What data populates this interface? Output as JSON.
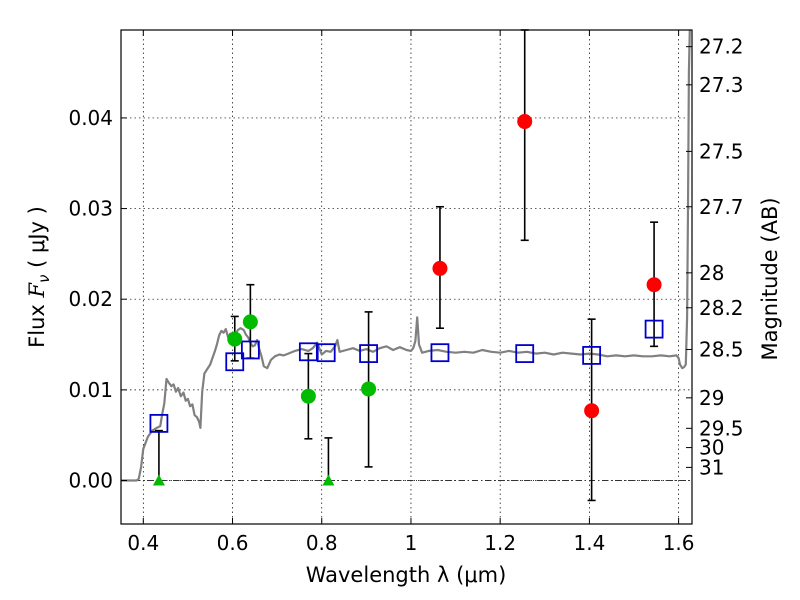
{
  "chart_data": {
    "type": "scatter",
    "xlabel": "Wavelength  λ (μm)",
    "ylabel": "Flux  F_ν  ( μJy )",
    "ylabel_parts": {
      "prefix": "Flux ",
      "symbol": "F",
      "sub": "ν",
      "unit": " ( μJy )"
    },
    "ylabel_right": "Magnitude (AB)",
    "xlim": [
      0.35,
      1.63
    ],
    "ylim": [
      -0.0048,
      0.0497
    ],
    "grid": true,
    "x_ticks": [
      {
        "v": 0.4,
        "label": "0.4"
      },
      {
        "v": 0.6,
        "label": "0.6"
      },
      {
        "v": 0.8,
        "label": "0.8"
      },
      {
        "v": 1.0,
        "label": "1"
      },
      {
        "v": 1.2,
        "label": "1.2"
      },
      {
        "v": 1.4,
        "label": "1.4"
      },
      {
        "v": 1.6,
        "label": "1.6"
      }
    ],
    "y_ticks": [
      {
        "v": 0.0,
        "label": "0.00"
      },
      {
        "v": 0.01,
        "label": "0.01"
      },
      {
        "v": 0.02,
        "label": "0.02"
      },
      {
        "v": 0.03,
        "label": "0.03"
      },
      {
        "v": 0.04,
        "label": "0.04"
      }
    ],
    "mag_ticks": [
      "27.2",
      "27.3",
      "27.5",
      "27.7",
      "28",
      "28.2",
      "28.5",
      "29",
      "29.5",
      "30",
      "31"
    ],
    "sed_model": {
      "color": "#808080",
      "points": [
        [
          0.35,
          0.0
        ],
        [
          0.385,
          0.0
        ],
        [
          0.39,
          0.0002
        ],
        [
          0.395,
          0.0015
        ],
        [
          0.4,
          0.0035
        ],
        [
          0.41,
          0.0048
        ],
        [
          0.42,
          0.0055
        ],
        [
          0.43,
          0.0058
        ],
        [
          0.438,
          0.006
        ],
        [
          0.442,
          0.0072
        ],
        [
          0.447,
          0.0085
        ],
        [
          0.452,
          0.0112
        ],
        [
          0.457,
          0.0108
        ],
        [
          0.463,
          0.0104
        ],
        [
          0.468,
          0.0106
        ],
        [
          0.473,
          0.0098
        ],
        [
          0.478,
          0.0102
        ],
        [
          0.484,
          0.0093
        ],
        [
          0.49,
          0.0097
        ],
        [
          0.495,
          0.0088
        ],
        [
          0.5,
          0.009
        ],
        [
          0.505,
          0.0082
        ],
        [
          0.51,
          0.0084
        ],
        [
          0.515,
          0.0072
        ],
        [
          0.52,
          0.007
        ],
        [
          0.525,
          0.0065
        ],
        [
          0.528,
          0.0058
        ],
        [
          0.532,
          0.0098
        ],
        [
          0.537,
          0.0118
        ],
        [
          0.542,
          0.0122
        ],
        [
          0.55,
          0.0128
        ],
        [
          0.555,
          0.0135
        ],
        [
          0.56,
          0.0142
        ],
        [
          0.565,
          0.015
        ],
        [
          0.57,
          0.016
        ],
        [
          0.575,
          0.0165
        ],
        [
          0.58,
          0.0163
        ],
        [
          0.585,
          0.0167
        ],
        [
          0.59,
          0.0158
        ],
        [
          0.595,
          0.0162
        ],
        [
          0.6,
          0.0156
        ],
        [
          0.605,
          0.016
        ],
        [
          0.612,
          0.0166
        ],
        [
          0.618,
          0.0168
        ],
        [
          0.625,
          0.0166
        ],
        [
          0.63,
          0.0161
        ],
        [
          0.635,
          0.0158
        ],
        [
          0.64,
          0.0152
        ],
        [
          0.645,
          0.0148
        ],
        [
          0.65,
          0.0149
        ],
        [
          0.655,
          0.0155
        ],
        [
          0.66,
          0.0145
        ],
        [
          0.665,
          0.0137
        ],
        [
          0.67,
          0.0126
        ],
        [
          0.678,
          0.0124
        ],
        [
          0.686,
          0.0133
        ],
        [
          0.695,
          0.0137
        ],
        [
          0.705,
          0.0139
        ],
        [
          0.715,
          0.0138
        ],
        [
          0.725,
          0.014
        ],
        [
          0.74,
          0.0143
        ],
        [
          0.755,
          0.0145
        ],
        [
          0.77,
          0.0143
        ],
        [
          0.78,
          0.0146
        ],
        [
          0.79,
          0.0152
        ],
        [
          0.8,
          0.0139
        ],
        [
          0.81,
          0.0143
        ],
        [
          0.82,
          0.0142
        ],
        [
          0.83,
          0.0148
        ],
        [
          0.835,
          0.0155
        ],
        [
          0.84,
          0.0142
        ],
        [
          0.855,
          0.0144
        ],
        [
          0.87,
          0.0146
        ],
        [
          0.885,
          0.0143
        ],
        [
          0.9,
          0.0145
        ],
        [
          0.915,
          0.0142
        ],
        [
          0.93,
          0.0146
        ],
        [
          0.945,
          0.0148
        ],
        [
          0.96,
          0.0144
        ],
        [
          0.975,
          0.0147
        ],
        [
          0.99,
          0.0144
        ],
        [
          1.0,
          0.0143
        ],
        [
          1.005,
          0.0146
        ],
        [
          1.01,
          0.0154
        ],
        [
          1.014,
          0.018
        ],
        [
          1.018,
          0.015
        ],
        [
          1.025,
          0.0141
        ],
        [
          1.04,
          0.0143
        ],
        [
          1.06,
          0.0144
        ],
        [
          1.08,
          0.0142
        ],
        [
          1.1,
          0.0141
        ],
        [
          1.12,
          0.0142
        ],
        [
          1.14,
          0.0141
        ],
        [
          1.16,
          0.0144
        ],
        [
          1.18,
          0.0142
        ],
        [
          1.2,
          0.0141
        ],
        [
          1.22,
          0.0143
        ],
        [
          1.24,
          0.0141
        ],
        [
          1.26,
          0.0142
        ],
        [
          1.28,
          0.014
        ],
        [
          1.3,
          0.0141
        ],
        [
          1.32,
          0.0139
        ],
        [
          1.34,
          0.0141
        ],
        [
          1.36,
          0.014
        ],
        [
          1.38,
          0.0139
        ],
        [
          1.4,
          0.014
        ],
        [
          1.42,
          0.0139
        ],
        [
          1.44,
          0.0137
        ],
        [
          1.46,
          0.0138
        ],
        [
          1.48,
          0.0137
        ],
        [
          1.5,
          0.0138
        ],
        [
          1.52,
          0.0137
        ],
        [
          1.54,
          0.0137
        ],
        [
          1.56,
          0.0138
        ],
        [
          1.58,
          0.0137
        ],
        [
          1.595,
          0.0138
        ],
        [
          1.6,
          0.0135
        ],
        [
          1.603,
          0.0128
        ],
        [
          1.608,
          0.0124
        ],
        [
          1.612,
          0.0125
        ],
        [
          1.616,
          0.0128
        ],
        [
          1.619,
          0.018
        ],
        [
          1.621,
          0.03
        ],
        [
          1.623,
          0.045
        ],
        [
          1.625,
          0.05
        ]
      ]
    },
    "series": [
      {
        "marker": "square-open",
        "color": "#0000cc",
        "points": [
          {
            "x": 0.435,
            "y": 0.0063
          },
          {
            "x": 0.605,
            "y": 0.0131
          },
          {
            "x": 0.64,
            "y": 0.0144
          },
          {
            "x": 0.77,
            "y": 0.0142
          },
          {
            "x": 0.81,
            "y": 0.0141
          },
          {
            "x": 0.905,
            "y": 0.014
          },
          {
            "x": 1.065,
            "y": 0.0141
          },
          {
            "x": 1.255,
            "y": 0.014
          },
          {
            "x": 1.405,
            "y": 0.0138
          },
          {
            "x": 1.545,
            "y": 0.0167
          }
        ]
      },
      {
        "marker": "circle",
        "color": "#ff0000",
        "points": [
          {
            "x": 1.065,
            "y": 0.0234,
            "yerr_low": 0.0168,
            "yerr_high": 0.0302
          },
          {
            "x": 1.255,
            "y": 0.0396,
            "yerr_low": 0.0265,
            "yerr_high": 0.0497
          },
          {
            "x": 1.405,
            "y": 0.0077,
            "yerr_low": -0.0022,
            "yerr_high": 0.0178
          },
          {
            "x": 1.545,
            "y": 0.0216,
            "yerr_low": 0.0148,
            "yerr_high": 0.0285
          }
        ]
      },
      {
        "marker": "circle",
        "color": "#00bb00",
        "points": [
          {
            "x": 0.605,
            "y": 0.0156,
            "yerr_low": 0.0132,
            "yerr_high": 0.0181
          },
          {
            "x": 0.64,
            "y": 0.0175,
            "yerr_low": 0.0135,
            "yerr_high": 0.0216
          },
          {
            "x": 0.77,
            "y": 0.0093,
            "yerr_low": 0.0046,
            "yerr_high": 0.014
          },
          {
            "x": 0.905,
            "y": 0.0101,
            "yerr_low": 0.0015,
            "yerr_high": 0.0186
          }
        ]
      },
      {
        "marker": "triangle-up",
        "color": "#00bb00",
        "points": [
          {
            "x": 0.435,
            "y": 0.0,
            "yerr_low": 0.0,
            "yerr_high": 0.0055
          },
          {
            "x": 0.815,
            "y": 0.0,
            "yerr_low": 0.0,
            "yerr_high": 0.0047
          }
        ]
      }
    ]
  }
}
